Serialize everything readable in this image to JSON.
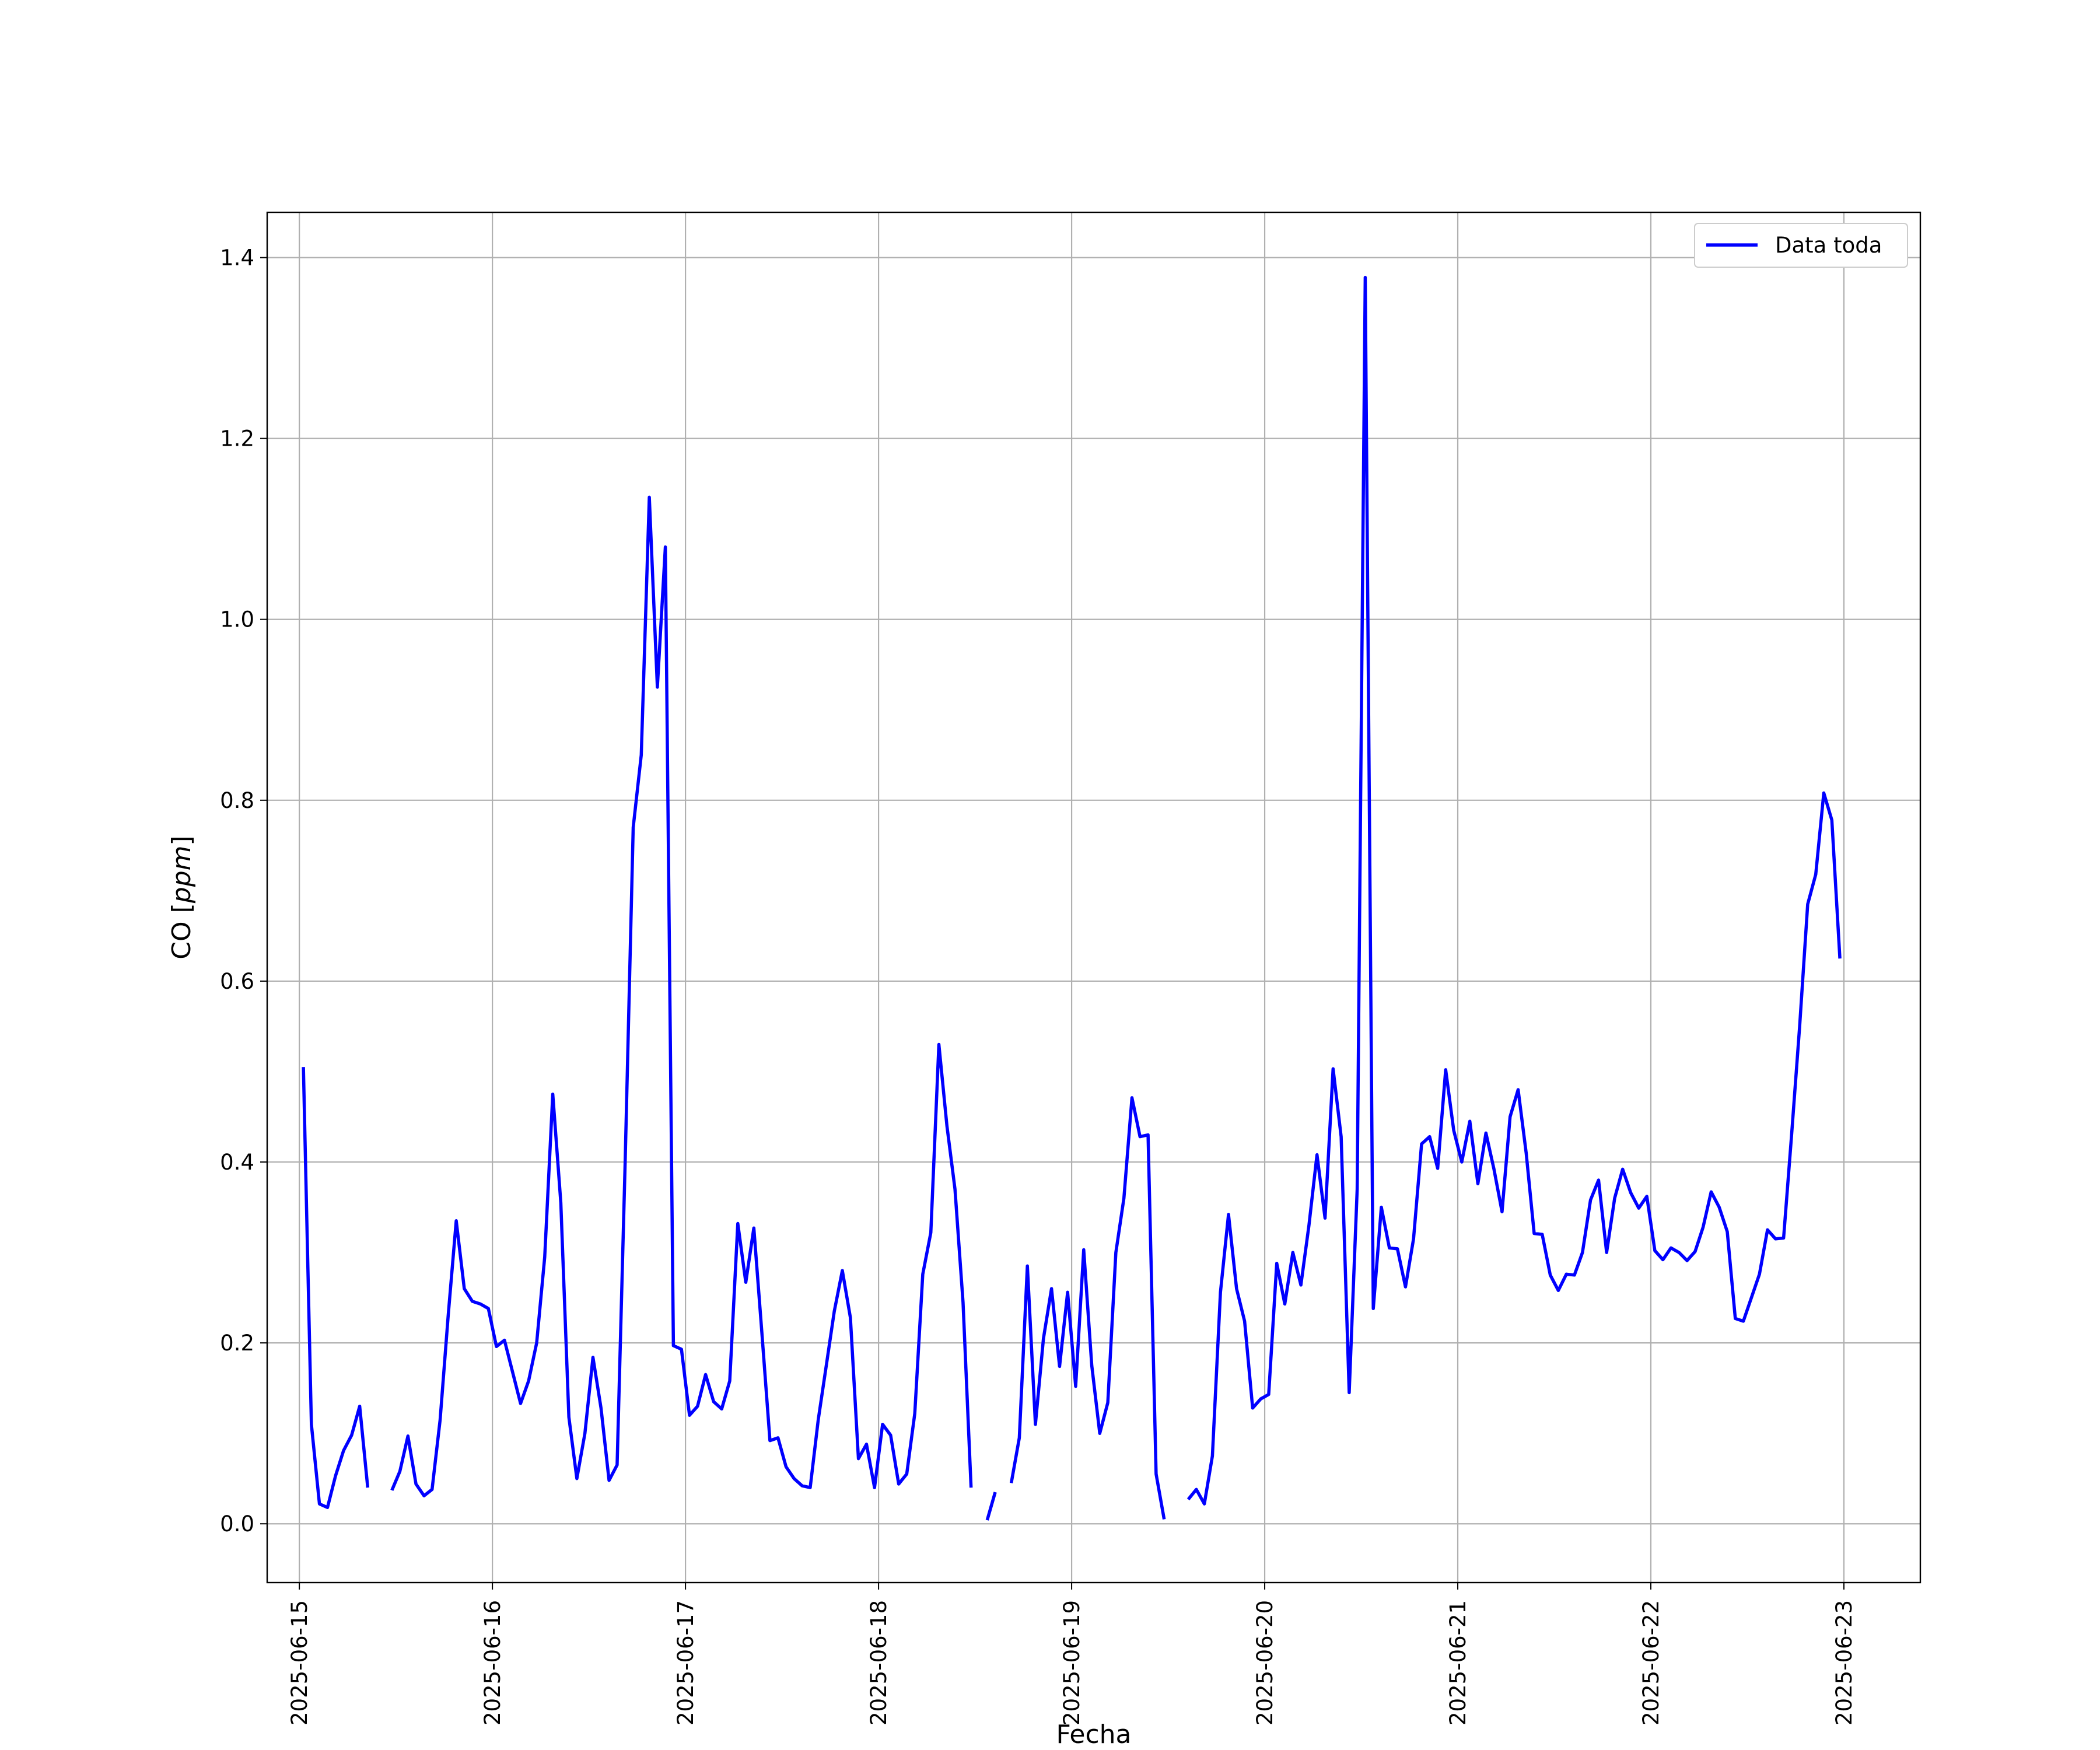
{
  "chart_data": {
    "type": "line",
    "xlabel": "Fecha",
    "ylabel": "CO [ppm]",
    "ylabel_plain": "CO [",
    "ylabel_italic": "ppm",
    "ylabel_close": "]",
    "xlim": [
      "2025-06-14T20:00",
      "2025-06-23T09:30"
    ],
    "ylim": [
      -0.065,
      1.45
    ],
    "x_ticks": [
      "2025-06-15",
      "2025-06-16",
      "2025-06-17",
      "2025-06-18",
      "2025-06-19",
      "2025-06-20",
      "2025-06-21",
      "2025-06-22",
      "2025-06-23"
    ],
    "y_ticks": [
      "0.0",
      "0.2",
      "0.4",
      "0.6",
      "0.8",
      "1.0",
      "1.2",
      "1.4"
    ],
    "grid": true,
    "legend": {
      "placement": "top-right",
      "entries": [
        "Data toda"
      ]
    },
    "series": [
      {
        "name": "Data toda",
        "color": "#0000ff",
        "interval_hours": 1,
        "start": "2025-06-15T00:30",
        "y": [
          0.505,
          0.11,
          0.022,
          0.018,
          0.053,
          0.081,
          0.098,
          0.13,
          0.04,
          null,
          null,
          0.037,
          0.058,
          0.097,
          0.044,
          0.031,
          0.038,
          0.115,
          0.23,
          0.335,
          0.26,
          0.246,
          0.243,
          0.238,
          0.196,
          0.203,
          0.168,
          0.133,
          0.158,
          0.2,
          0.295,
          0.475,
          0.355,
          0.118,
          0.05,
          0.1,
          0.184,
          0.128,
          0.048,
          0.065,
          0.4,
          0.77,
          0.85,
          1.135,
          0.925,
          1.08,
          0.197,
          0.193,
          0.12,
          0.13,
          0.165,
          0.135,
          0.127,
          0.158,
          0.332,
          0.267,
          0.327,
          0.211,
          0.092,
          0.095,
          0.063,
          0.05,
          0.042,
          0.04,
          0.115,
          0.175,
          0.235,
          0.28,
          0.228,
          0.072,
          0.088,
          0.04,
          0.11,
          0.098,
          0.044,
          0.055,
          0.122,
          0.276,
          0.322,
          0.53,
          0.44,
          0.37,
          0.245,
          0.04,
          null,
          0.004,
          0.035,
          null,
          0.045,
          0.095,
          0.285,
          0.11,
          0.205,
          0.26,
          0.174,
          0.256,
          0.152,
          0.303,
          0.175,
          0.1,
          0.134,
          0.3,
          0.36,
          0.471,
          0.428,
          0.43,
          0.055,
          0.005,
          null,
          null,
          0.027,
          0.038,
          0.022,
          0.075,
          0.256,
          0.342,
          0.26,
          0.224,
          0.128,
          0.138,
          0.143,
          0.288,
          0.243,
          0.3,
          0.264,
          0.33,
          0.408,
          0.338,
          0.503,
          0.428,
          0.145,
          0.37,
          1.378,
          0.238,
          0.35,
          0.305,
          0.304,
          0.262,
          0.315,
          0.42,
          0.428,
          0.393,
          0.502,
          0.435,
          0.4,
          0.445,
          0.376,
          0.432,
          0.392,
          0.345,
          0.45,
          0.48,
          0.41,
          0.321,
          0.32,
          0.275,
          0.258,
          0.276,
          0.275,
          0.3,
          0.358,
          0.38,
          0.3,
          0.36,
          0.392,
          0.366,
          0.349,
          0.362,
          0.302,
          0.292,
          0.305,
          0.3,
          0.291,
          0.301,
          0.328,
          0.367,
          0.35,
          0.323,
          0.227,
          0.224,
          0.25,
          0.276,
          0.325,
          0.315,
          0.316,
          0.43,
          0.55,
          0.685,
          0.718,
          0.808,
          0.778,
          0.625
        ]
      }
    ]
  }
}
